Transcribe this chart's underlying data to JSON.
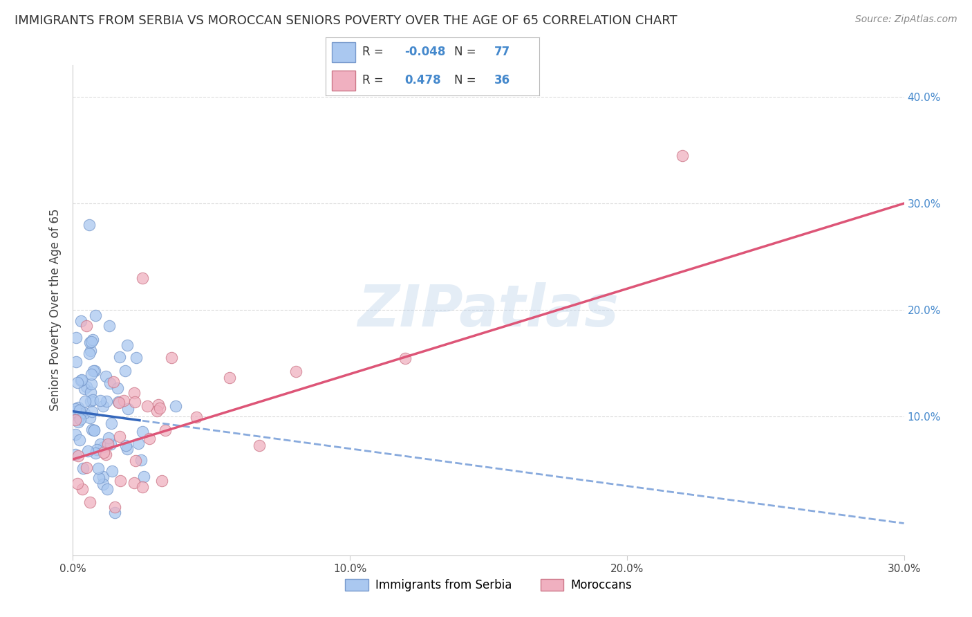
{
  "title": "IMMIGRANTS FROM SERBIA VS MOROCCAN SENIORS POVERTY OVER THE AGE OF 65 CORRELATION CHART",
  "source": "Source: ZipAtlas.com",
  "ylabel": "Seniors Poverty Over the Age of 65",
  "xlim": [
    0.0,
    0.3
  ],
  "ylim": [
    -0.03,
    0.43
  ],
  "xtick_labels": [
    "0.0%",
    "10.0%",
    "20.0%",
    "30.0%"
  ],
  "xtick_vals": [
    0.0,
    0.1,
    0.2,
    0.3
  ],
  "ytick_labels_right": [
    "10.0%",
    "20.0%",
    "30.0%",
    "40.0%"
  ],
  "ytick_vals_right": [
    0.1,
    0.2,
    0.3,
    0.4
  ],
  "watermark": "ZIPatlas",
  "serbia_color": "#aac8f0",
  "serbia_edge": "#7799cc",
  "serbia_trend_solid": "#3366bb",
  "serbia_trend_dash": "#88aadd",
  "morocco_color": "#f0b0c0",
  "morocco_edge": "#cc7788",
  "morocco_trend": "#dd5577",
  "serbia_R": -0.048,
  "serbia_N": 77,
  "morocco_R": 0.478,
  "morocco_N": 36,
  "serbia_name": "Immigrants from Serbia",
  "morocco_name": "Moroccans",
  "background_color": "#ffffff",
  "grid_color": "#cccccc",
  "title_fontsize": 13,
  "label_fontsize": 12,
  "tick_fontsize": 11,
  "right_tick_color": "#4488cc"
}
